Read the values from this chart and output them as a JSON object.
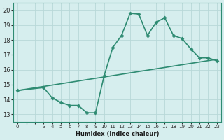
{
  "title": "",
  "xlabel": "Humidex (Indice chaleur)",
  "ylabel": "",
  "bg_color": "#d6eeee",
  "line_color": "#2e8b72",
  "grid_color": "#b8d8d8",
  "curve_x": [
    0,
    3,
    4,
    5,
    6,
    7,
    8,
    9,
    10,
    11,
    12,
    13,
    14,
    15,
    16,
    17,
    18,
    19,
    20,
    21,
    22,
    23
  ],
  "curve_y": [
    14.6,
    14.8,
    14.1,
    13.8,
    13.6,
    13.6,
    13.1,
    13.1,
    15.6,
    17.5,
    18.3,
    19.8,
    19.75,
    18.3,
    19.2,
    19.5,
    18.3,
    18.1,
    17.4,
    16.8,
    16.8,
    16.6
  ],
  "trend_x": [
    0,
    23
  ],
  "trend_y": [
    14.6,
    16.7
  ],
  "ylim": [
    12.5,
    20.5
  ],
  "xlim": [
    -0.5,
    23.5
  ],
  "yticks": [
    13,
    14,
    15,
    16,
    17,
    18,
    19,
    20
  ],
  "xtick_positions": [
    0,
    1,
    2,
    3,
    4,
    5,
    6,
    7,
    8,
    9,
    10,
    11,
    12,
    13,
    14,
    15,
    16,
    17,
    18,
    19,
    20,
    21,
    22,
    23
  ],
  "xtick_labels": [
    "0",
    "",
    "",
    "3",
    "4",
    "5",
    "6",
    "7",
    "8",
    "9",
    "10",
    "11",
    "12",
    "13",
    "14",
    "15",
    "16",
    "17",
    "18",
    "19",
    "20",
    "21",
    "22",
    "23"
  ],
  "marker": "D",
  "marker_size": 2.5,
  "line_width": 1.2
}
